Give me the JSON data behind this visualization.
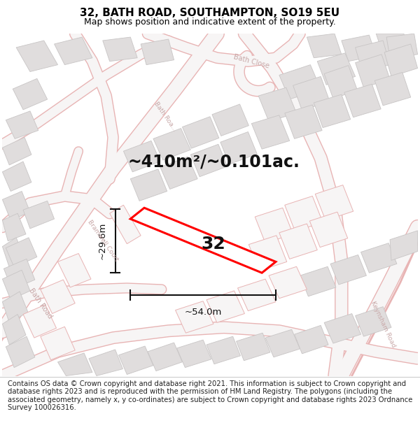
{
  "title": "32, BATH ROAD, SOUTHAMPTON, SO19 5EU",
  "subtitle": "Map shows position and indicative extent of the property.",
  "area_label": "~410m²/~0.101ac.",
  "number_label": "32",
  "width_label": "~54.0m",
  "height_label": "~29.6m",
  "footer": "Contains OS data © Crown copyright and database right 2021. This information is subject to Crown copyright and database rights 2023 and is reproduced with the permission of HM Land Registry. The polygons (including the associated geometry, namely x, y co-ordinates) are subject to Crown copyright and database rights 2023 Ordnance Survey 100026316.",
  "bg_color": "#ffffff",
  "map_bg_color": "#f7f5f5",
  "road_outline_color": "#e8b4b4",
  "road_fill_color": "#f7f5f5",
  "building_fill": "#e0dddd",
  "building_edge": "#c8c5c5",
  "plot_fill": "#ffffff",
  "plot_border": "#ff0000",
  "dim_color": "#111111",
  "label_color": "#c8a8a8",
  "title_fontsize": 11,
  "subtitle_fontsize": 9,
  "area_fontsize": 17,
  "number_fontsize": 18,
  "dim_fontsize": 9.5,
  "road_label_fontsize": 7,
  "footer_fontsize": 7.2
}
